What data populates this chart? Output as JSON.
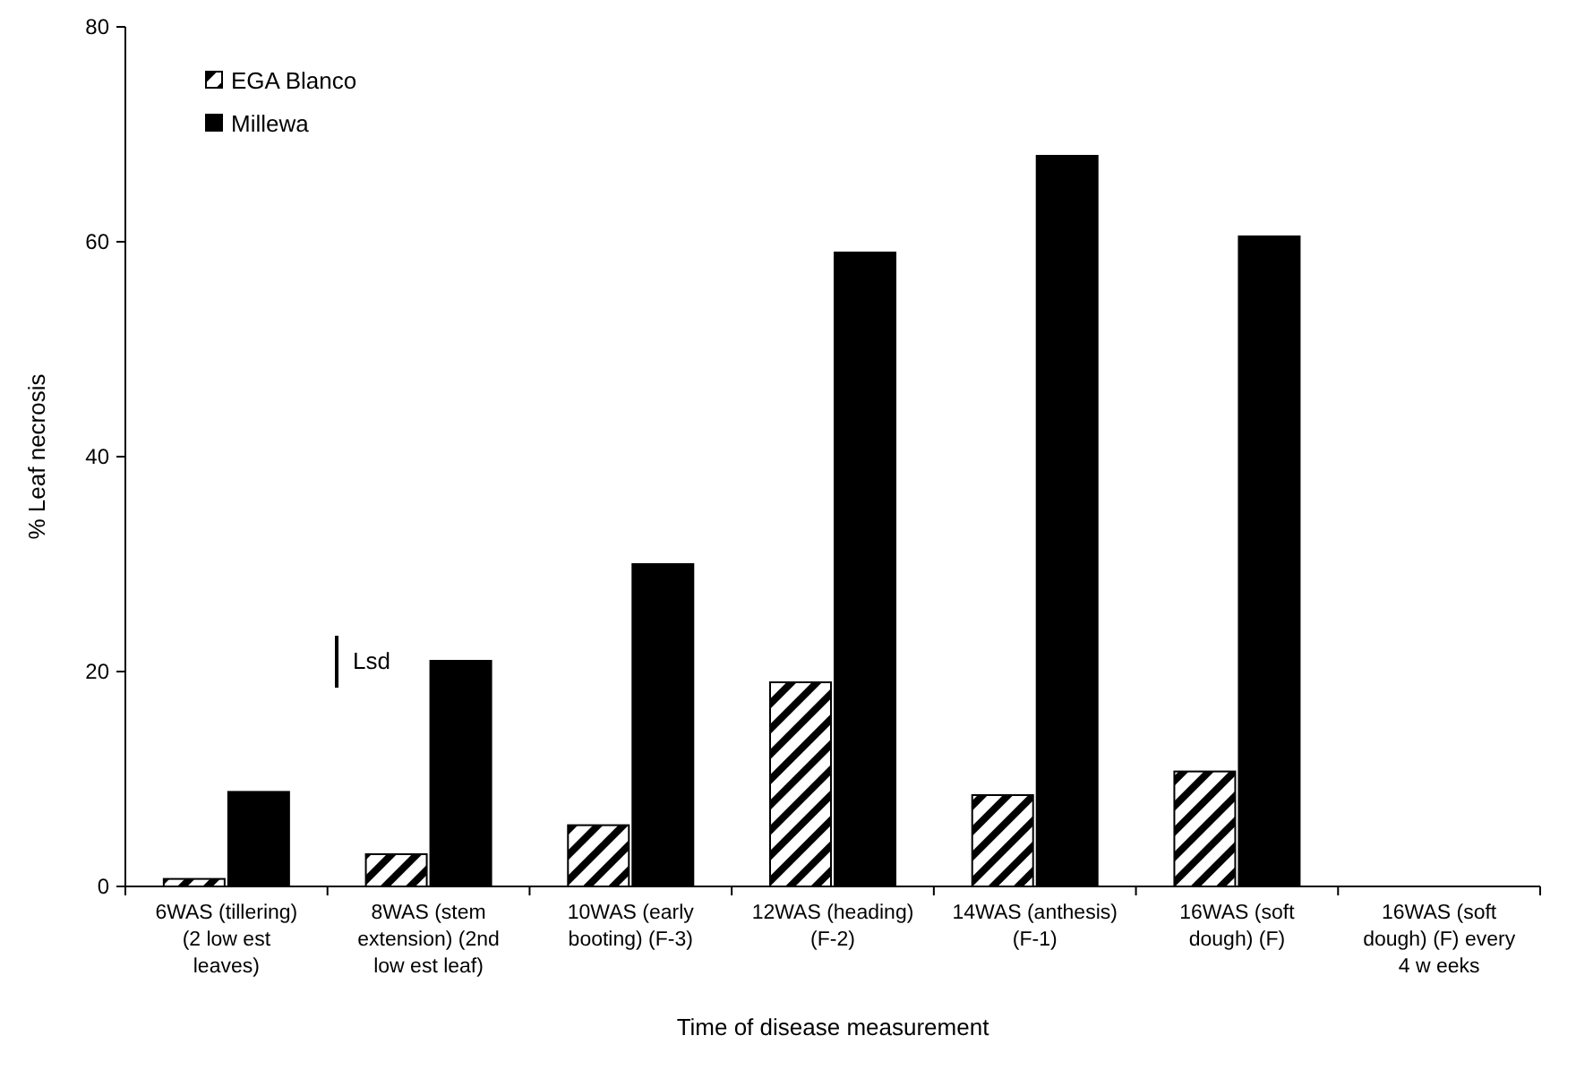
{
  "chart_data": {
    "type": "bar",
    "xlabel": "Time of disease measurement",
    "ylabel": "% Leaf necrosis",
    "categories": [
      "6WAS (tillering) (2 low est leaves)",
      "8WAS (stem extension) (2nd low est leaf)",
      "10WAS (early booting) (F-3)",
      "12WAS (heading) (F-2)",
      "14WAS (anthesis) (F-1)",
      "16WAS (soft dough) (F)",
      "16WAS (soft dough) (F) every 4 w eeks"
    ],
    "series": [
      {
        "name": "EGA Blanco",
        "color": "#000000",
        "values": [
          0.7,
          3,
          5.7,
          19,
          8.5,
          10.7,
          null
        ]
      },
      {
        "name": "Millewa",
        "color": "#000000",
        "values": [
          8.8,
          21,
          30,
          59,
          68,
          60.5,
          null
        ]
      }
    ],
    "ylim": [
      0,
      80
    ],
    "yticks": [
      0,
      20,
      40,
      60,
      80
    ],
    "grid": false,
    "legend": "top left",
    "annotations": [
      "Lsd"
    ]
  }
}
